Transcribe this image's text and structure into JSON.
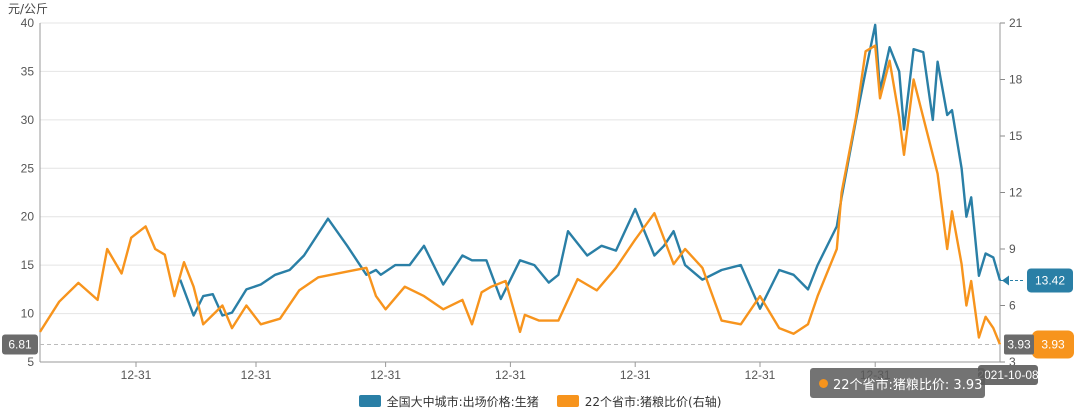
{
  "chart_data": {
    "type": "line",
    "left_axis_unit": "元/公斤",
    "left_axis": {
      "ylim": [
        5,
        40
      ],
      "ticks": [
        "5",
        "10",
        "15",
        "20",
        "25",
        "30",
        "35",
        "40"
      ]
    },
    "right_axis": {
      "ylim": [
        3,
        21
      ],
      "ticks": [
        "3",
        "6",
        "9",
        "12",
        "15",
        "18",
        "21"
      ]
    },
    "x_tick_labels": [
      "12-31",
      "12-31",
      "12-31",
      "12-31",
      "12-31",
      "12-31",
      "12-31"
    ],
    "end_date_label": "2021-10-08",
    "start_marker": {
      "value": "6.81"
    },
    "grid": true,
    "legend_position": "bottom-center",
    "series": [
      {
        "name": "全国大中城市:出场价格:生猪",
        "axis": "left",
        "color": "#2a7fa6",
        "end_value_label": "13.42",
        "x": [
          0.146,
          0.16,
          0.17,
          0.18,
          0.19,
          0.2,
          0.215,
          0.23,
          0.245,
          0.26,
          0.275,
          0.3,
          0.32,
          0.34,
          0.35,
          0.355,
          0.37,
          0.385,
          0.4,
          0.42,
          0.44,
          0.45,
          0.465,
          0.48,
          0.5,
          0.515,
          0.53,
          0.54,
          0.55,
          0.57,
          0.585,
          0.6,
          0.62,
          0.64,
          0.65,
          0.66,
          0.672,
          0.69,
          0.71,
          0.73,
          0.75,
          0.77,
          0.785,
          0.8,
          0.81,
          0.83,
          0.835,
          0.85,
          0.86,
          0.87,
          0.875,
          0.885,
          0.895,
          0.9,
          0.91,
          0.92,
          0.93,
          0.935,
          0.945,
          0.95,
          0.96,
          0.965,
          0.97,
          0.978,
          0.985,
          0.993,
          1.0
        ],
        "values": [
          13.5,
          9.8,
          11.8,
          12,
          9.8,
          10.1,
          12.5,
          13,
          14,
          14.5,
          16,
          19.8,
          17,
          14,
          14.5,
          14,
          15,
          15,
          17,
          13,
          16,
          15.5,
          15.5,
          11.5,
          15.5,
          15,
          13.2,
          14,
          18.5,
          16,
          17,
          16.5,
          20.8,
          16,
          17,
          18.5,
          15,
          13.5,
          14.5,
          15,
          10.5,
          14.5,
          14,
          12.5,
          15,
          19,
          22,
          30,
          35,
          39.8,
          33,
          37.5,
          35,
          29,
          37.3,
          37,
          30,
          36,
          30.5,
          31,
          25,
          20,
          22,
          13.9,
          16.2,
          15.8,
          13.42
        ]
      },
      {
        "name": "22个省市:猪粮比价(右轴)",
        "axis": "right",
        "color": "#f7941d",
        "end_value_label": "3.93",
        "x": [
          0,
          0.02,
          0.04,
          0.06,
          0.07,
          0.085,
          0.095,
          0.11,
          0.12,
          0.13,
          0.14,
          0.15,
          0.16,
          0.17,
          0.18,
          0.19,
          0.2,
          0.215,
          0.23,
          0.25,
          0.27,
          0.29,
          0.32,
          0.34,
          0.35,
          0.36,
          0.38,
          0.4,
          0.42,
          0.44,
          0.45,
          0.46,
          0.47,
          0.485,
          0.5,
          0.505,
          0.52,
          0.54,
          0.56,
          0.58,
          0.6,
          0.62,
          0.64,
          0.66,
          0.672,
          0.69,
          0.71,
          0.73,
          0.75,
          0.77,
          0.785,
          0.8,
          0.81,
          0.83,
          0.835,
          0.85,
          0.86,
          0.87,
          0.875,
          0.885,
          0.895,
          0.9,
          0.91,
          0.92,
          0.93,
          0.935,
          0.945,
          0.95,
          0.96,
          0.965,
          0.97,
          0.978,
          0.985,
          0.993,
          1.0
        ],
        "values": [
          4.6,
          6.2,
          7.2,
          6.3,
          9,
          7.7,
          9.6,
          10.2,
          9,
          8.7,
          6.5,
          8.3,
          7,
          5,
          5.5,
          6,
          4.8,
          6,
          5,
          5.3,
          6.8,
          7.5,
          7.8,
          8,
          6.5,
          5.8,
          7,
          6.5,
          5.8,
          6.3,
          5,
          6.7,
          7,
          7.3,
          4.6,
          5.5,
          5.2,
          5.2,
          7.4,
          6.8,
          8,
          9.5,
          10.9,
          8.2,
          9,
          8,
          5.2,
          5,
          6.5,
          4.8,
          4.5,
          5,
          6.5,
          9,
          12,
          16,
          19.5,
          19.8,
          17,
          19,
          16,
          14,
          18,
          16,
          14,
          13,
          9,
          11,
          8.2,
          6,
          7.3,
          4.3,
          5.4,
          4.8,
          3.93
        ]
      }
    ]
  },
  "tooltip": {
    "text": "22个省市:猪粮比价: 3.93",
    "color": "#f7941d"
  }
}
